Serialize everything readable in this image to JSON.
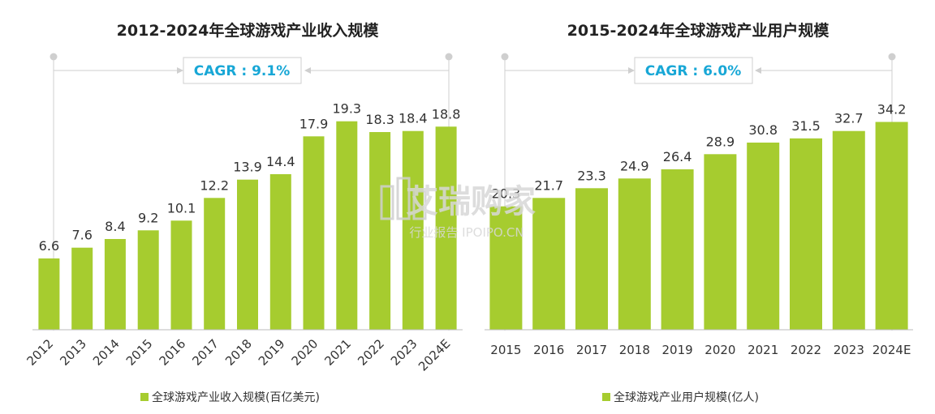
{
  "watermark": {
    "logo_text": "艾瑞购家",
    "sub_text": "行业报告 IPOIPO.CN"
  },
  "colors": {
    "bar": "#a6cc2f",
    "cagr_text": "#18a7d6",
    "guide": "#cfcfcf",
    "axis": "#bbbbbb"
  },
  "chart_data": [
    {
      "type": "bar",
      "title": "2012-2024年全球游戏产业收入规模",
      "annotation": "CAGR : 9.1%",
      "categories": [
        "2012",
        "2013",
        "2014",
        "2015",
        "2016",
        "2017",
        "2018",
        "2019",
        "2020",
        "2021",
        "2022",
        "2023",
        "2024E"
      ],
      "series": [
        {
          "name": "全球游戏产业收入规模(百亿美元)",
          "values": [
            6.6,
            7.6,
            8.4,
            9.2,
            10.1,
            12.2,
            13.9,
            14.4,
            17.9,
            19.3,
            18.3,
            18.4,
            18.8
          ]
        }
      ],
      "ylim": [
        0,
        22.5
      ],
      "xlabel": "",
      "ylabel": "",
      "legend_position": "bottom",
      "tick_rotation": "rotated",
      "grid": false
    },
    {
      "type": "bar",
      "title": "2015-2024年全球游戏产业用户规模",
      "annotation": "CAGR : 6.0%",
      "categories": [
        "2015",
        "2016",
        "2017",
        "2018",
        "2019",
        "2020",
        "2021",
        "2022",
        "2023",
        "2024E"
      ],
      "series": [
        {
          "name": "全球游戏产业用户规模(亿人)",
          "values": [
            20.3,
            21.7,
            23.3,
            24.9,
            26.4,
            28.9,
            30.8,
            31.5,
            32.7,
            34.2
          ]
        }
      ],
      "ylim": [
        0,
        40
      ],
      "xlabel": "",
      "ylabel": "",
      "legend_position": "bottom",
      "tick_rotation": "horizontal",
      "grid": false
    }
  ]
}
